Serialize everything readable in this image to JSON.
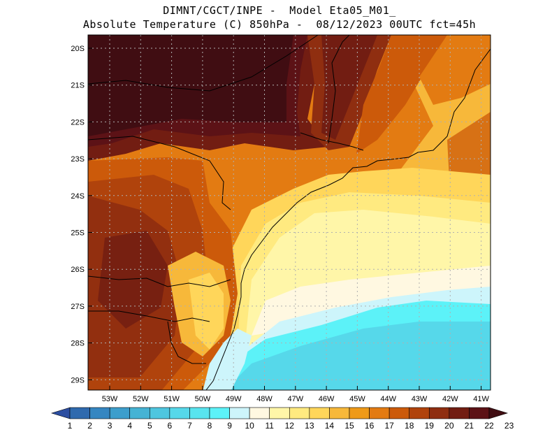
{
  "header": {
    "line1": "DIMNT/CGCT/INPE -  Model Eta05_M01_",
    "line2": "Absolute Temperature (C) 850hPa -  08/12/2023 00UTC fct=45h"
  },
  "map": {
    "lat_labels": [
      "20S",
      "21S",
      "22S",
      "23S",
      "24S",
      "25S",
      "26S",
      "27S",
      "28S",
      "29S"
    ],
    "lon_labels": [
      "53W",
      "52W",
      "51W",
      "50W",
      "49W",
      "48W",
      "47W",
      "46W",
      "45W",
      "44W",
      "43W",
      "42W",
      "41W"
    ],
    "gridlines": "dotted",
    "field": "850hPa absolute temperature"
  },
  "colorbar": {
    "labels": [
      "1",
      "2",
      "3",
      "4",
      "5",
      "6",
      "7",
      "8",
      "9",
      "10",
      "11",
      "12",
      "13",
      "14",
      "15",
      "16",
      "17",
      "18",
      "19",
      "20",
      "21",
      "22",
      "23"
    ],
    "colors": [
      "#2c4ea1",
      "#2f6aae",
      "#3586c1",
      "#3d9ecc",
      "#45b3d4",
      "#4ec6df",
      "#56d8ea",
      "#58e4ef",
      "#5cf2f8",
      "#cdf5fb",
      "#fff8e1",
      "#fff6a8",
      "#ffea80",
      "#ffd65a",
      "#f7b83a",
      "#ef9a18",
      "#e37b12",
      "#cc5a0a",
      "#b0430c",
      "#8f2e10",
      "#721d12",
      "#5c1216",
      "#400d12"
    ]
  }
}
